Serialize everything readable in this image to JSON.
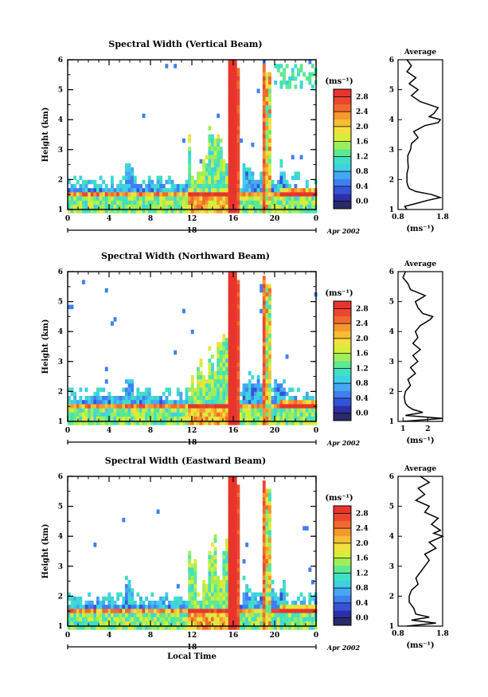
{
  "chart_data": [
    {
      "type": "heatmap",
      "title": "Spectral Width (Vertical Beam)",
      "ylabel": "Height (km)",
      "x_ticks": [
        "0",
        "4",
        "8",
        "12",
        "16",
        "20",
        "0"
      ],
      "y_ticks": [
        "1",
        "2",
        "3",
        "4",
        "5",
        "6"
      ],
      "xlim": [
        0,
        24
      ],
      "ylim": [
        1,
        6
      ],
      "date_day": "18",
      "date_month": "Apr 2002",
      "colorbar": {
        "label": "(ms⁻¹)",
        "ticks": [
          "0.0",
          "0.4",
          "0.8",
          "1.2",
          "1.6",
          "2.0",
          "2.4",
          "2.8"
        ],
        "colors": [
          "#2a2a68",
          "#2c2fa8",
          "#3453d8",
          "#3f7ff0",
          "#44a8f2",
          "#3fcfe6",
          "#3fe0c4",
          "#5ee892",
          "#9eee5a",
          "#d6ee3a",
          "#f2e040",
          "#f7bd34",
          "#f7972e",
          "#f16a2c",
          "#ec4630",
          "#e8352c"
        ]
      },
      "side_profile": {
        "title": "Average",
        "xlabel": "(ms⁻¹)",
        "x_ticks": [
          "0.8",
          "1.8"
        ],
        "xlim": [
          0.8,
          1.8
        ],
        "heights": [
          1.0,
          1.1,
          1.2,
          1.3,
          1.4,
          1.5,
          1.6,
          1.7,
          1.8,
          1.9,
          2.0,
          2.2,
          2.4,
          2.6,
          2.8,
          3.0,
          3.2,
          3.4,
          3.6,
          3.8,
          3.9,
          4.0,
          4.1,
          4.2,
          4.4,
          4.6,
          4.8,
          5.0,
          5.2,
          5.4,
          5.6,
          5.8,
          6.0
        ],
        "values": [
          1.0,
          0.95,
          1.2,
          1.45,
          1.75,
          1.55,
          1.2,
          1.05,
          1.02,
          1.0,
          1.0,
          1.0,
          1.03,
          1.02,
          1.02,
          1.08,
          1.1,
          1.25,
          1.15,
          1.4,
          1.7,
          1.75,
          1.5,
          1.6,
          1.7,
          1.3,
          1.1,
          1.25,
          1.05,
          1.2,
          1.0,
          1.1,
          1.0
        ]
      }
    },
    {
      "type": "heatmap",
      "title": "Spectral Width (Northward Beam)",
      "ylabel": "Height (km)",
      "x_ticks": [
        "0",
        "4",
        "8",
        "12",
        "16",
        "20",
        "0"
      ],
      "y_ticks": [
        "1",
        "2",
        "3",
        "4",
        "5",
        "6"
      ],
      "xlim": [
        0,
        24
      ],
      "ylim": [
        1,
        6
      ],
      "date_day": "18",
      "date_month": "Apr 2002",
      "colorbar": {
        "label": "(ms⁻¹)",
        "ticks": [
          "0.0",
          "0.4",
          "0.8",
          "1.2",
          "1.6",
          "2.0",
          "2.4",
          "2.8"
        ],
        "colors": [
          "#2a2a68",
          "#2c2fa8",
          "#3453d8",
          "#3f7ff0",
          "#44a8f2",
          "#3fcfe6",
          "#3fe0c4",
          "#5ee892",
          "#9eee5a",
          "#d6ee3a",
          "#f2e040",
          "#f7bd34",
          "#f7972e",
          "#f16a2c",
          "#ec4630",
          "#e8352c"
        ]
      },
      "side_profile": {
        "title": "Average",
        "xlabel": "(ms⁻¹)",
        "x_ticks": [
          "1",
          "2"
        ],
        "xlim": [
          0.8,
          2.6
        ],
        "heights": [
          1.0,
          1.1,
          1.2,
          1.3,
          1.4,
          1.5,
          1.6,
          1.8,
          2.0,
          2.2,
          2.4,
          2.6,
          2.8,
          3.0,
          3.2,
          3.4,
          3.6,
          3.8,
          4.0,
          4.2,
          4.4,
          4.5,
          4.6,
          4.8,
          5.0,
          5.2,
          5.4,
          5.6,
          5.8,
          6.0
        ],
        "values": [
          1.0,
          2.6,
          1.1,
          1.8,
          1.4,
          1.2,
          1.1,
          1.05,
          1.1,
          1.3,
          1.2,
          1.5,
          1.3,
          1.6,
          1.4,
          1.7,
          1.4,
          1.6,
          1.5,
          1.7,
          2.1,
          2.2,
          1.8,
          1.6,
          1.5,
          1.9,
          1.3,
          1.2,
          1.0,
          1.1
        ]
      }
    },
    {
      "type": "heatmap",
      "title": "Spectral Width (Eastward Beam)",
      "ylabel": "Height (km)",
      "xlabel": "Local Time",
      "x_ticks": [
        "0",
        "4",
        "8",
        "12",
        "16",
        "20",
        "0"
      ],
      "y_ticks": [
        "1",
        "2",
        "3",
        "4",
        "5",
        "6"
      ],
      "xlim": [
        0,
        24
      ],
      "ylim": [
        1,
        6
      ],
      "date_day": "18",
      "date_month": "Apr 2002",
      "colorbar": {
        "label": "(ms⁻¹)",
        "ticks": [
          "0.0",
          "0.4",
          "0.8",
          "1.2",
          "1.6",
          "2.0",
          "2.4",
          "2.8"
        ],
        "colors": [
          "#2a2a68",
          "#2c2fa8",
          "#3453d8",
          "#3f7ff0",
          "#44a8f2",
          "#3fcfe6",
          "#3fe0c4",
          "#5ee892",
          "#9eee5a",
          "#d6ee3a",
          "#f2e040",
          "#f7bd34",
          "#f7972e",
          "#f16a2c",
          "#ec4630",
          "#e8352c"
        ]
      },
      "side_profile": {
        "title": "Average",
        "xlabel": "(ms⁻¹)",
        "x_ticks": [
          "0.8",
          "1.8"
        ],
        "xlim": [
          0.8,
          1.8
        ],
        "heights": [
          1.0,
          1.1,
          1.2,
          1.3,
          1.4,
          1.6,
          1.8,
          2.0,
          2.2,
          2.4,
          2.6,
          2.8,
          3.0,
          3.2,
          3.4,
          3.6,
          3.8,
          4.0,
          4.1,
          4.2,
          4.4,
          4.6,
          4.8,
          5.0,
          5.2,
          5.4,
          5.6,
          5.8,
          6.0
        ],
        "values": [
          1.0,
          1.65,
          1.1,
          1.5,
          1.2,
          1.15,
          1.05,
          1.05,
          1.1,
          1.25,
          1.2,
          1.3,
          1.4,
          1.5,
          1.4,
          1.65,
          1.5,
          1.8,
          1.6,
          1.75,
          1.55,
          1.7,
          1.4,
          1.5,
          1.2,
          1.4,
          1.25,
          1.5,
          1.3
        ]
      }
    }
  ]
}
